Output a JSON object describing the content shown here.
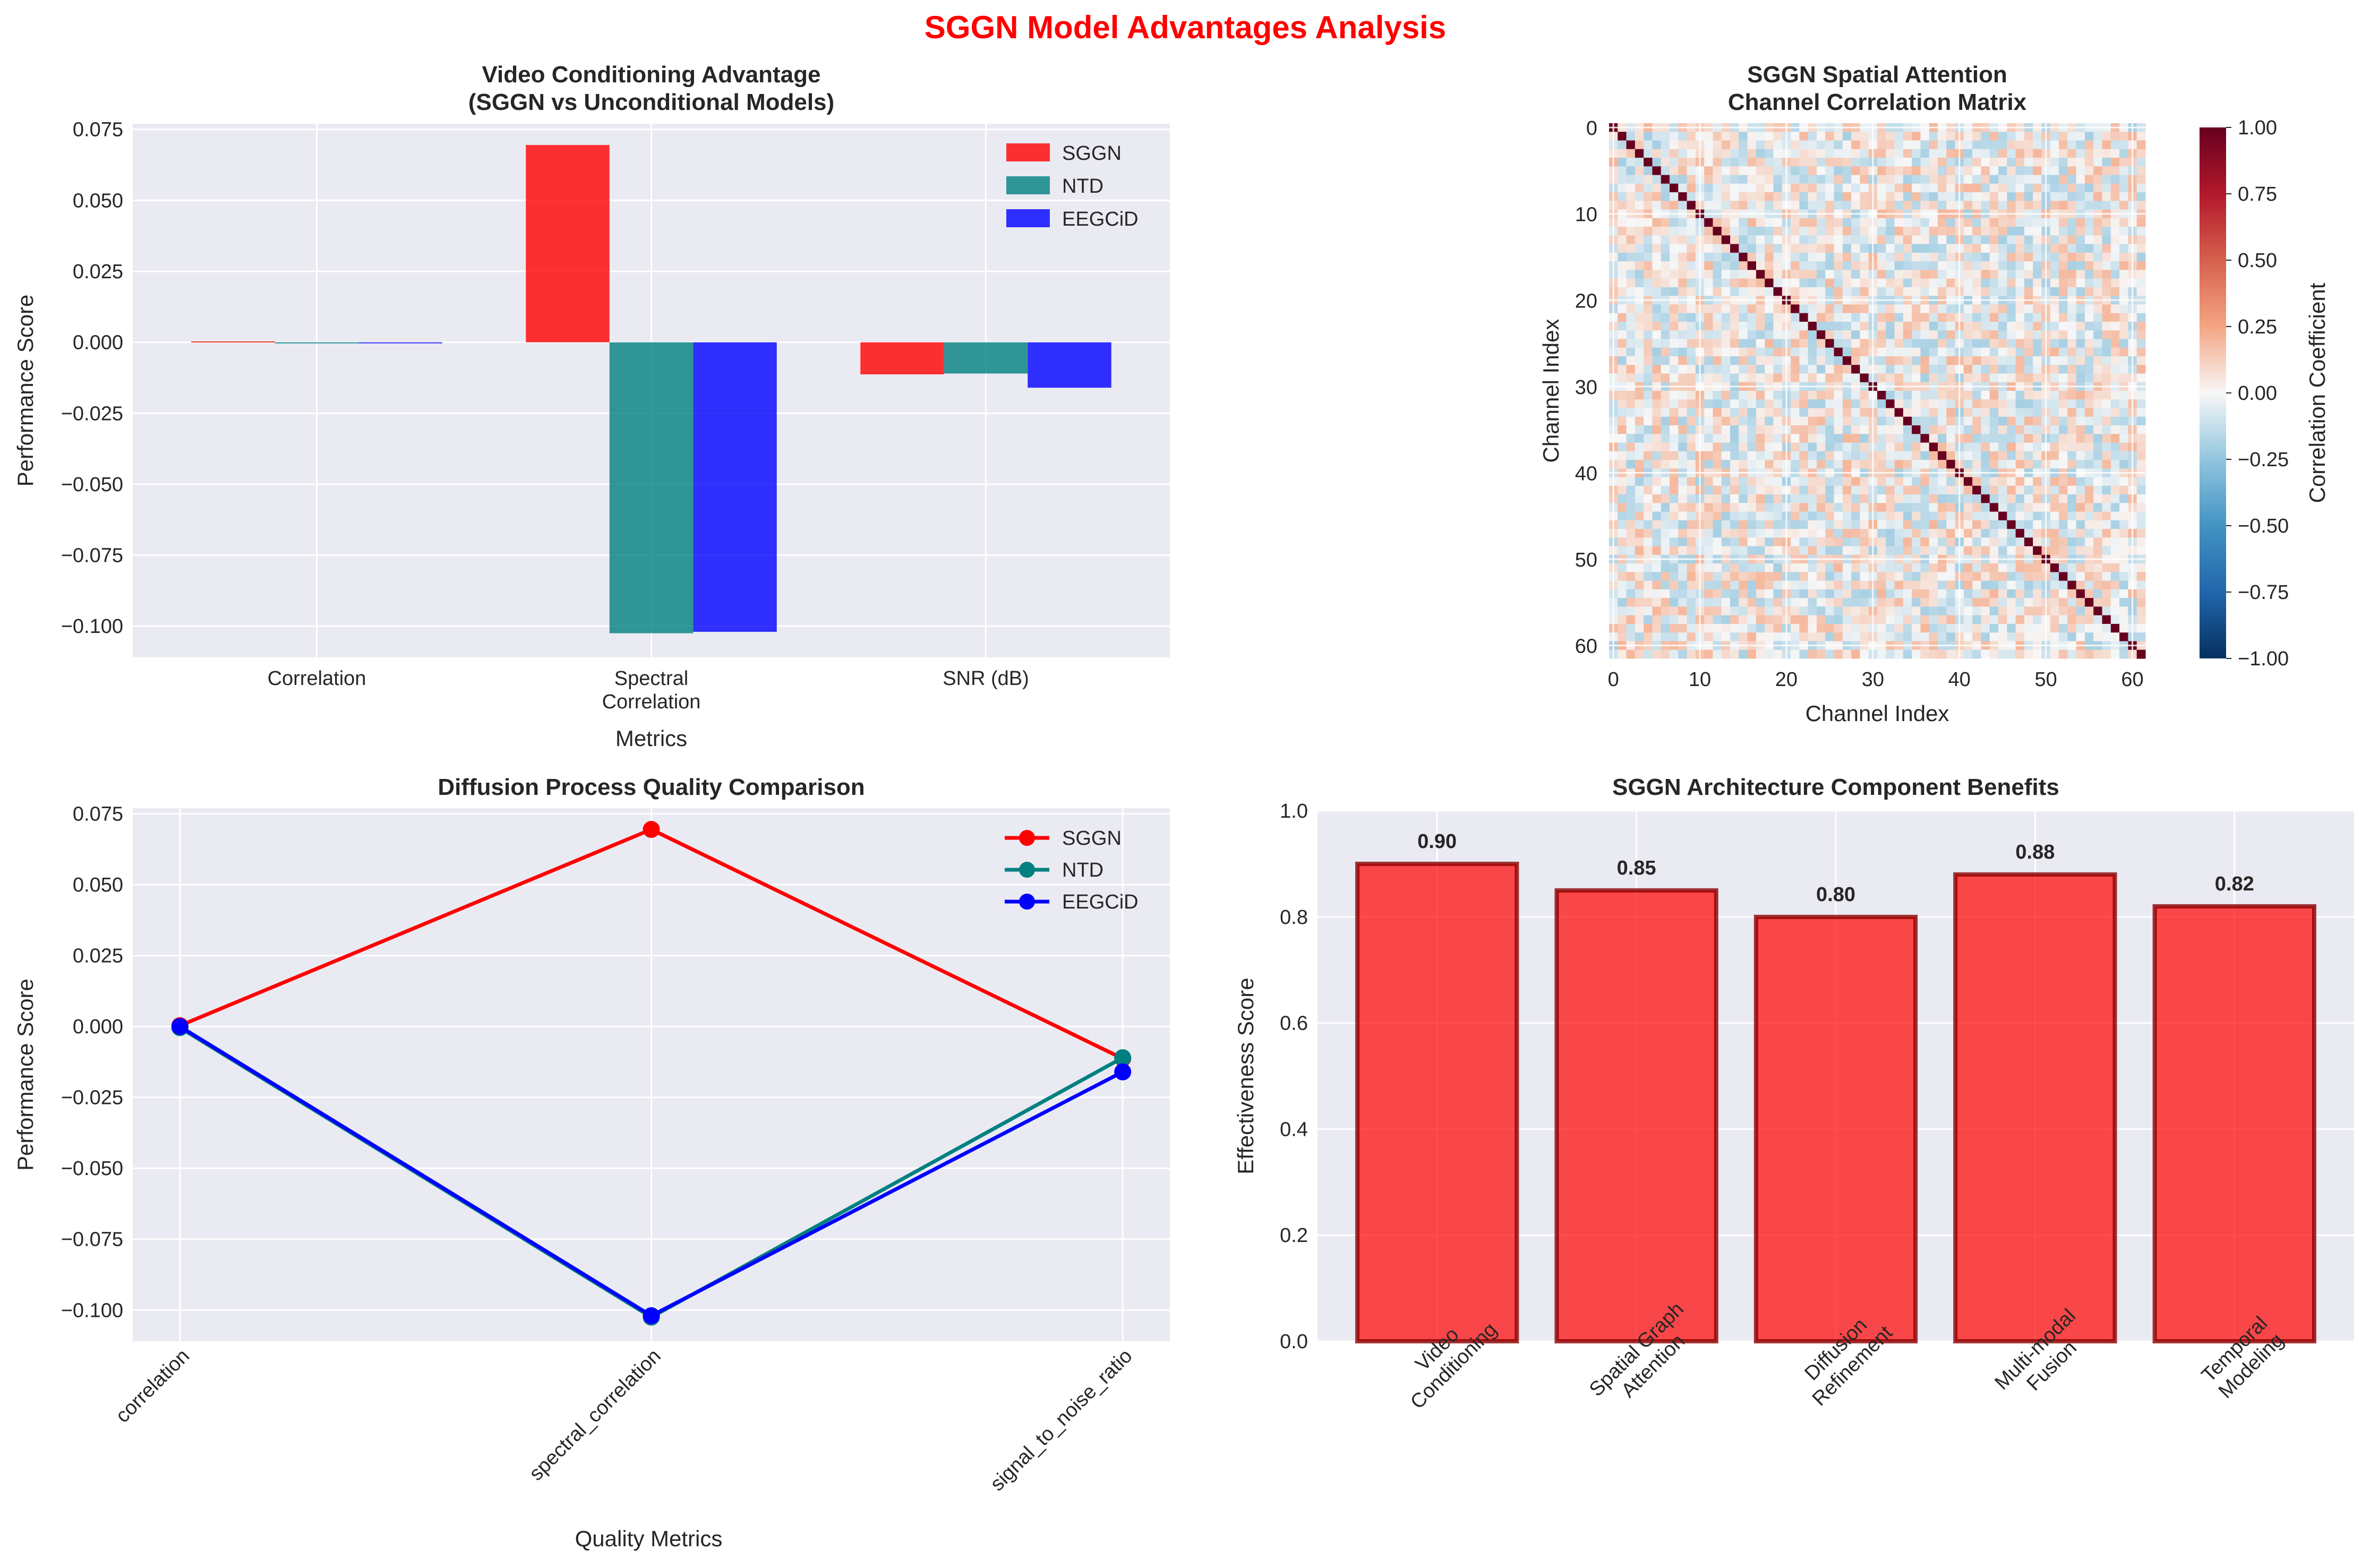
{
  "figure": {
    "title": "SGGN Model Advantages Analysis",
    "title_color": "#ff0000"
  },
  "colors": {
    "sggn": "#ff0000",
    "ntd": "#008080",
    "eegcid": "#0000ff",
    "panel_bg": "#eaeaf2",
    "grid": "#ffffff",
    "text": "#262626"
  },
  "chart_data": [
    {
      "type": "bar",
      "title": "Video Conditioning Advantage\n(SGGN vs Unconditional Models)",
      "xlabel": "Metrics",
      "ylabel": "Performance Score",
      "categories": [
        "Correlation",
        "Spectral\nCorrelation",
        "SNR (dB)"
      ],
      "ylim": [
        -0.111,
        0.077
      ],
      "yticks": [
        0.075,
        0.05,
        0.025,
        0.0,
        -0.025,
        -0.05,
        -0.075,
        -0.1
      ],
      "ytick_labels": [
        "0.075",
        "0.050",
        "0.025",
        "0.000",
        "−0.025",
        "−0.050",
        "−0.075",
        "−0.100"
      ],
      "legend": "top-right",
      "series": [
        {
          "name": "SGGN",
          "color": "#ff0000",
          "values": [
            0.0003,
            0.0695,
            -0.0113
          ]
        },
        {
          "name": "NTD",
          "color": "#008080",
          "values": [
            -0.0004,
            -0.1025,
            -0.011
          ]
        },
        {
          "name": "EEGCiD",
          "color": "#0000ff",
          "values": [
            0.0,
            -0.102,
            -0.016
          ]
        }
      ]
    },
    {
      "type": "heatmap",
      "title": "SGGN Spatial Attention\nChannel Correlation Matrix",
      "xlabel": "Channel Index",
      "ylabel": "Channel Index",
      "size": 62,
      "xticks": [
        0,
        10,
        20,
        30,
        40,
        50,
        60
      ],
      "yticks": [
        0,
        10,
        20,
        30,
        40,
        50,
        60
      ],
      "colorbar_label": "Correlation Coefficient",
      "colorbar_range": [
        -1.0,
        1.0
      ],
      "colorbar_ticks": [
        "1.00",
        "0.75",
        "0.50",
        "0.25",
        "0.00",
        "−0.25",
        "−0.50",
        "−0.75",
        "−1.00"
      ],
      "colormap": "RdBu_r",
      "diagonal_value": 1.0,
      "offdiag_range": [
        -0.25,
        0.25
      ]
    },
    {
      "type": "line",
      "title": "Diffusion Process Quality Comparison",
      "xlabel": "Quality Metrics",
      "ylabel": "Performance Score",
      "categories": [
        "correlation",
        "spectral_correlation",
        "signal_to_noise_ratio"
      ],
      "ylim": [
        -0.111,
        0.077
      ],
      "yticks": [
        0.075,
        0.05,
        0.025,
        0.0,
        -0.025,
        -0.05,
        -0.075,
        -0.1
      ],
      "ytick_labels": [
        "0.075",
        "0.050",
        "0.025",
        "0.000",
        "−0.025",
        "−0.050",
        "−0.075",
        "−0.100"
      ],
      "legend": "top-right",
      "series": [
        {
          "name": "SGGN",
          "color": "#ff0000",
          "values": [
            0.0003,
            0.0695,
            -0.0113
          ]
        },
        {
          "name": "NTD",
          "color": "#008080",
          "values": [
            -0.0004,
            -0.1025,
            -0.011
          ]
        },
        {
          "name": "EEGCiD",
          "color": "#0000ff",
          "values": [
            0.0,
            -0.102,
            -0.016
          ]
        }
      ]
    },
    {
      "type": "bar",
      "title": "SGGN Architecture Component Benefits",
      "xlabel": "",
      "ylabel": "Effectiveness Score",
      "categories": [
        "Video\nConditioning",
        "Spatial Graph\nAttention",
        "Diffusion\nRefinement",
        "Multi-modal\nFusion",
        "Temporal\nModeling"
      ],
      "values": [
        0.9,
        0.85,
        0.8,
        0.88,
        0.82
      ],
      "value_labels": [
        "0.90",
        "0.85",
        "0.80",
        "0.88",
        "0.82"
      ],
      "ylim": [
        0,
        1.0
      ],
      "yticks": [
        0.0,
        0.2,
        0.4,
        0.6,
        0.8,
        1.0
      ],
      "ytick_labels": [
        "0.0",
        "0.2",
        "0.4",
        "0.6",
        "0.8",
        "1.0"
      ],
      "bar_color": "#ff0000"
    }
  ]
}
